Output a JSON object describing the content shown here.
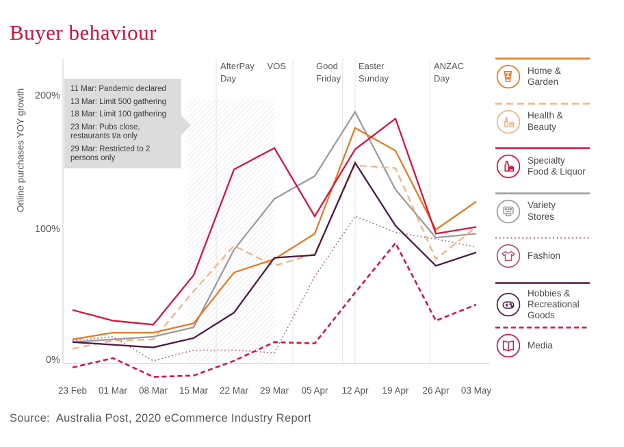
{
  "header": {
    "title": "Buyer behaviour"
  },
  "source": {
    "text": "Source:  Australia Post, 2020 eCommerce Industry Report"
  },
  "annotation": {
    "items": [
      "11 Mar: Pandemic declared",
      "13 Mar: Limit 500 gathering",
      "18 Mar: Limit 100 gathering",
      "23 Mar: Pubs close, restaurants t/a only",
      "29 Mar: Restricted to 2 persons only"
    ]
  },
  "legend": {
    "items": [
      {
        "label": "Home &\nGarden",
        "color": "#E87823",
        "style": "solid",
        "icon": "blender-icon"
      },
      {
        "label": "Health &\nBeauty",
        "color": "#F7B284",
        "style": "dashed",
        "icon": "cosmetics-icon"
      },
      {
        "label": "Specialty\nFood & Liquor",
        "color": "#DC103A",
        "style": "solid",
        "icon": "bottle-jar-icon"
      },
      {
        "label": "Variety\nStores",
        "color": "#9B9B9B",
        "style": "solid",
        "icon": "storefront-display-icon"
      },
      {
        "label": "Fashion",
        "color": "#B4556E",
        "style": "dotted",
        "icon": "tshirt-icon"
      },
      {
        "label": "Hobbies &\nRecreational\nGoods",
        "color": "#4A1A42",
        "style": "solid",
        "icon": "game-controller-icon"
      },
      {
        "label": "Media",
        "color": "#DC103A",
        "style": "dashed-short",
        "icon": "open-book-icon"
      }
    ]
  },
  "chart_data": {
    "type": "line",
    "title": "Buyer behaviour",
    "ylabel": "Online purchases YOY growth",
    "ylim": [
      -15,
      210
    ],
    "grid": false,
    "y_ticks": [
      "200%",
      "100%",
      "0%"
    ],
    "y_tick_values": [
      200,
      100,
      0
    ],
    "x_labels": [
      "23 Feb",
      "01 Mar",
      "08 Mar",
      "15 Mar",
      "22 Mar",
      "29 Mar",
      "05 Apr",
      "12 Apr",
      "19 Apr",
      "26 Apr",
      "03 May"
    ],
    "events": [
      {
        "label": "AfterPay\nDay",
        "week": 3.56
      },
      {
        "label": "VOS",
        "week": 5.46
      },
      {
        "label": "Good\nFriday",
        "week": 6.69
      },
      {
        "label": "Easter\nSunday",
        "week": 7.0
      },
      {
        "label": "ANZAC\nDay",
        "week": 8.85
      }
    ],
    "hatch_band": {
      "from_week": 2.86,
      "to_week": 5.02,
      "top_value": 197
    },
    "series": [
      {
        "name": "Variety Stores",
        "color": "#9B9B9B",
        "style": "solid",
        "values": [
          16,
          18,
          20,
          27,
          85,
          123,
          140,
          188,
          130,
          94,
          97
        ]
      },
      {
        "name": "Fashion",
        "color": "#B4556E",
        "style": "dotted",
        "values": [
          17,
          20,
          2,
          10,
          10,
          8,
          65,
          110,
          98,
          93,
          87
        ]
      },
      {
        "name": "Health & Beauty",
        "color": "#F7B284",
        "style": "dashed",
        "values": [
          11,
          17,
          18,
          54,
          88,
          73,
          82,
          148,
          146,
          78,
          102
        ]
      },
      {
        "name": "Media",
        "color": "#DC103A",
        "style": "dashed-short",
        "values": [
          -3,
          4,
          -10,
          -9,
          2,
          16,
          15,
          53,
          90,
          32,
          44
        ]
      },
      {
        "name": "Home & Garden",
        "color": "#E87823",
        "style": "solid",
        "values": [
          18,
          23,
          23,
          30,
          68,
          78,
          97,
          176,
          159,
          100,
          121
        ]
      },
      {
        "name": "Hobbies & Recreational Goods",
        "color": "#4A1A42",
        "style": "solid",
        "values": [
          16,
          14,
          12,
          19,
          38,
          79,
          81,
          150,
          103,
          73,
          83
        ]
      },
      {
        "name": "Specialty Food & Liquor",
        "color": "#DC103A",
        "style": "solid",
        "values": [
          40,
          32,
          29,
          66,
          145,
          161,
          110,
          160,
          183,
          97,
          102
        ]
      }
    ]
  }
}
